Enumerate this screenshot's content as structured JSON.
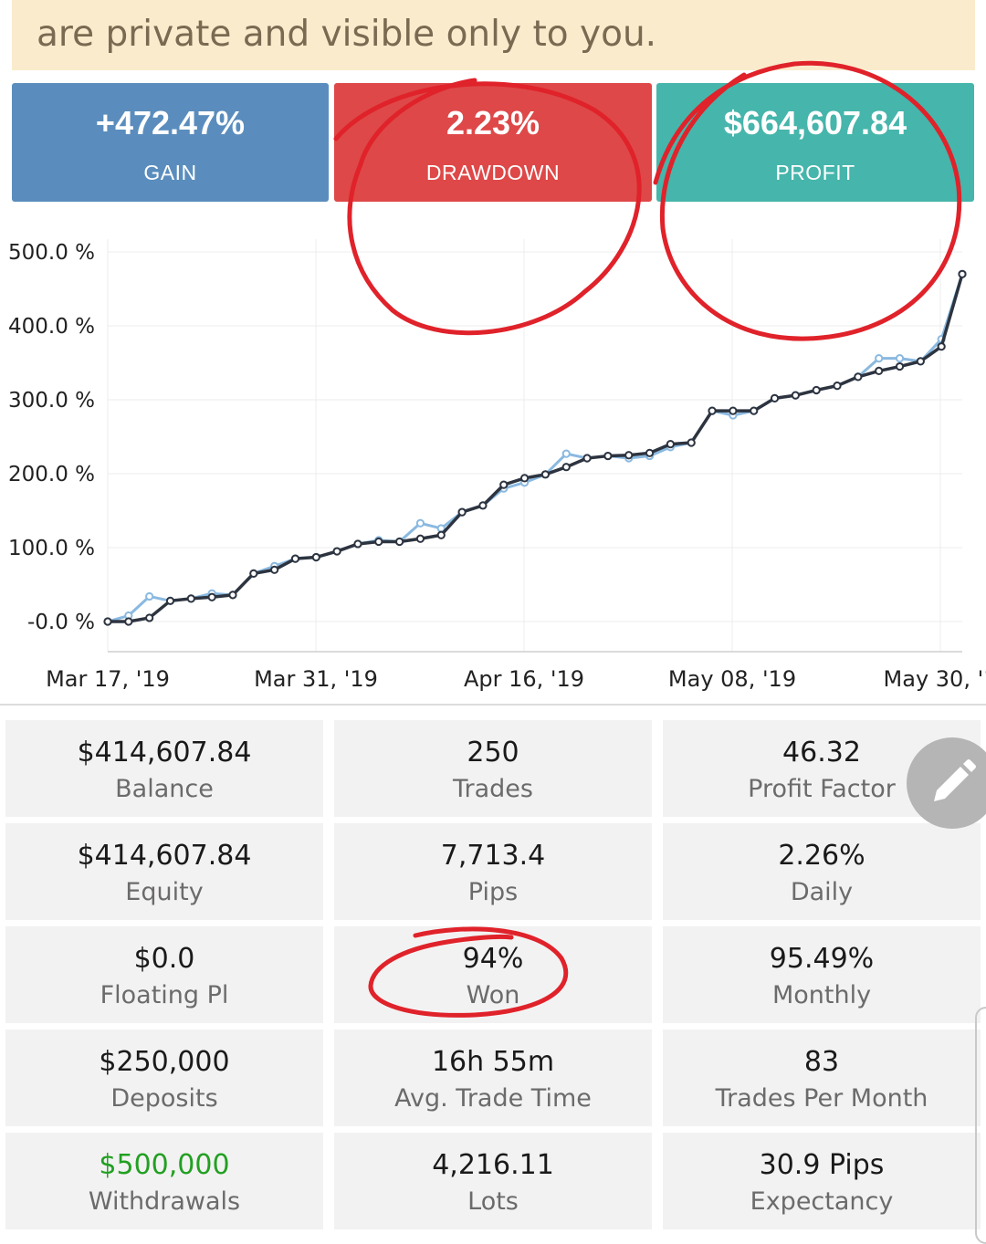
{
  "notice": {
    "text": "are private and visible only to you."
  },
  "summary": {
    "gain": {
      "value": "+472.47%",
      "label": "GAIN",
      "color": "#5a8dbd"
    },
    "drawdown": {
      "value": "2.23%",
      "label": "DRAWDOWN",
      "color": "#de4848"
    },
    "profit": {
      "value": "$664,607.84",
      "label": "PROFIT",
      "color": "#46b5ab"
    }
  },
  "chart_data": {
    "type": "line",
    "title": "",
    "xlabel": "",
    "ylabel": "",
    "ylim": [
      0,
      500
    ],
    "y_ticks": [
      {
        "value": 500,
        "label": "500.0 %"
      },
      {
        "value": 400,
        "label": "400.0 %"
      },
      {
        "value": 300,
        "label": "300.0 %"
      },
      {
        "value": 200,
        "label": "200.0 %"
      },
      {
        "value": 100,
        "label": "100.0 %"
      },
      {
        "value": 0,
        "label": "-0.0 %"
      }
    ],
    "x_ticks": [
      "Mar 17, '19",
      "Mar 31, '19",
      "Apr 16, '19",
      "May 08, '19",
      "May 30, '1"
    ],
    "grid": true,
    "series": [
      {
        "key": "balance",
        "color": "#2d3440",
        "values": [
          0,
          0,
          5,
          28,
          31,
          33,
          36,
          65,
          70,
          85,
          87,
          95,
          105,
          108,
          108,
          112,
          117,
          148,
          157,
          185,
          194,
          199,
          209,
          221,
          224,
          225,
          228,
          240,
          242,
          285,
          285,
          285,
          302,
          306,
          313,
          319,
          331,
          339,
          345,
          352,
          372,
          470
        ]
      },
      {
        "key": "equity",
        "color": "#8ab9e0",
        "values": [
          0,
          8,
          34,
          28,
          31,
          38,
          36,
          65,
          75,
          85,
          87,
          95,
          105,
          110,
          108,
          133,
          126,
          148,
          157,
          180,
          188,
          199,
          227,
          221,
          224,
          221,
          224,
          236,
          242,
          285,
          279,
          285,
          302,
          306,
          313,
          319,
          331,
          356,
          356,
          352,
          382,
          470
        ]
      }
    ]
  },
  "stats": [
    {
      "value": "$414,607.84",
      "label": "Balance"
    },
    {
      "value": "250",
      "label": "Trades"
    },
    {
      "value": "46.32",
      "label": "Profit Factor"
    },
    {
      "value": "$414,607.84",
      "label": "Equity"
    },
    {
      "value": "7,713.4",
      "label": "Pips"
    },
    {
      "value": "2.26%",
      "label": "Daily"
    },
    {
      "value": "$0.0",
      "label": "Floating Pl"
    },
    {
      "value": "94%",
      "label": "Won"
    },
    {
      "value": "95.49%",
      "label": "Monthly"
    },
    {
      "value": "$250,000",
      "label": "Deposits"
    },
    {
      "value": "16h 55m",
      "label": "Avg. Trade Time"
    },
    {
      "value": "83",
      "label": "Trades Per Month"
    },
    {
      "value": "$500,000",
      "label": "Withdrawals",
      "color": "#22a022"
    },
    {
      "value": "4,216.11",
      "label": "Lots"
    },
    {
      "value": "30.9 Pips",
      "label": "Expectancy"
    }
  ],
  "fab": {
    "icon": "pencil-icon"
  },
  "annotation": {
    "color": "#e0222a"
  }
}
